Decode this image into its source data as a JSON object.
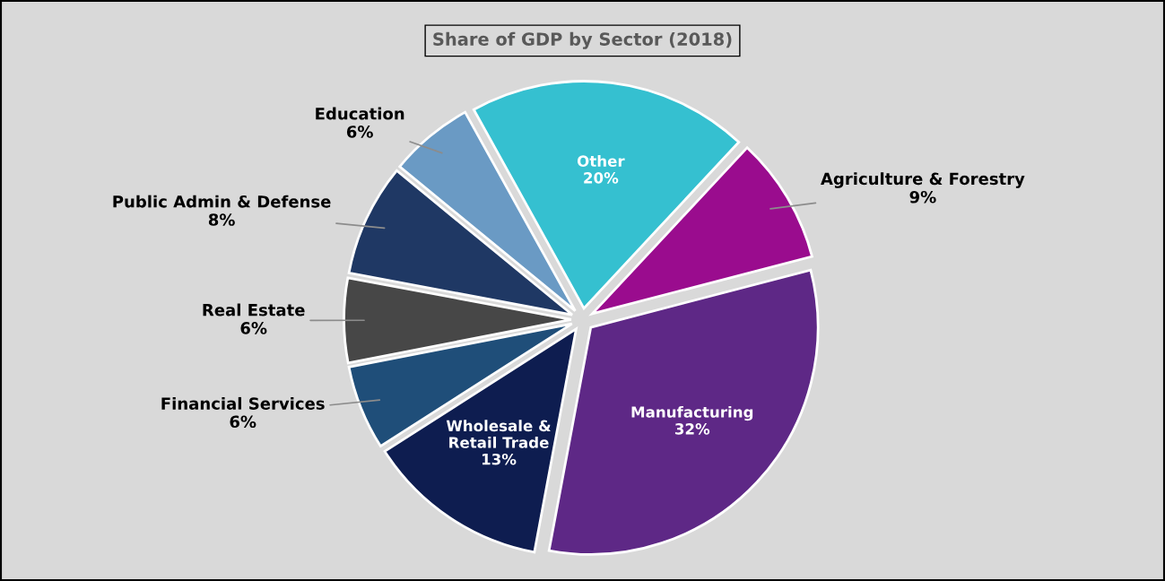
{
  "chart_data": {
    "type": "pie",
    "title": "Share of GDP by Sector (2018)",
    "categories": [
      "Agriculture & Forestry",
      "Manufacturing",
      "Wholesale &\nRetail Trade",
      "Financial Services",
      "Real Estate",
      "Public Admin & Defense",
      "Education",
      "Other"
    ],
    "values": [
      9,
      32,
      13,
      6,
      6,
      8,
      6,
      20
    ],
    "value_labels": [
      "9%",
      "32%",
      "13%",
      "6%",
      "6%",
      "8%",
      "6%",
      "20%"
    ],
    "colors": [
      "#9a0c8e",
      "#5e2886",
      "#0e1d50",
      "#1f4e79",
      "#474747",
      "#1f3864",
      "#6a9ac4",
      "#35c0d0"
    ],
    "legend": false
  }
}
